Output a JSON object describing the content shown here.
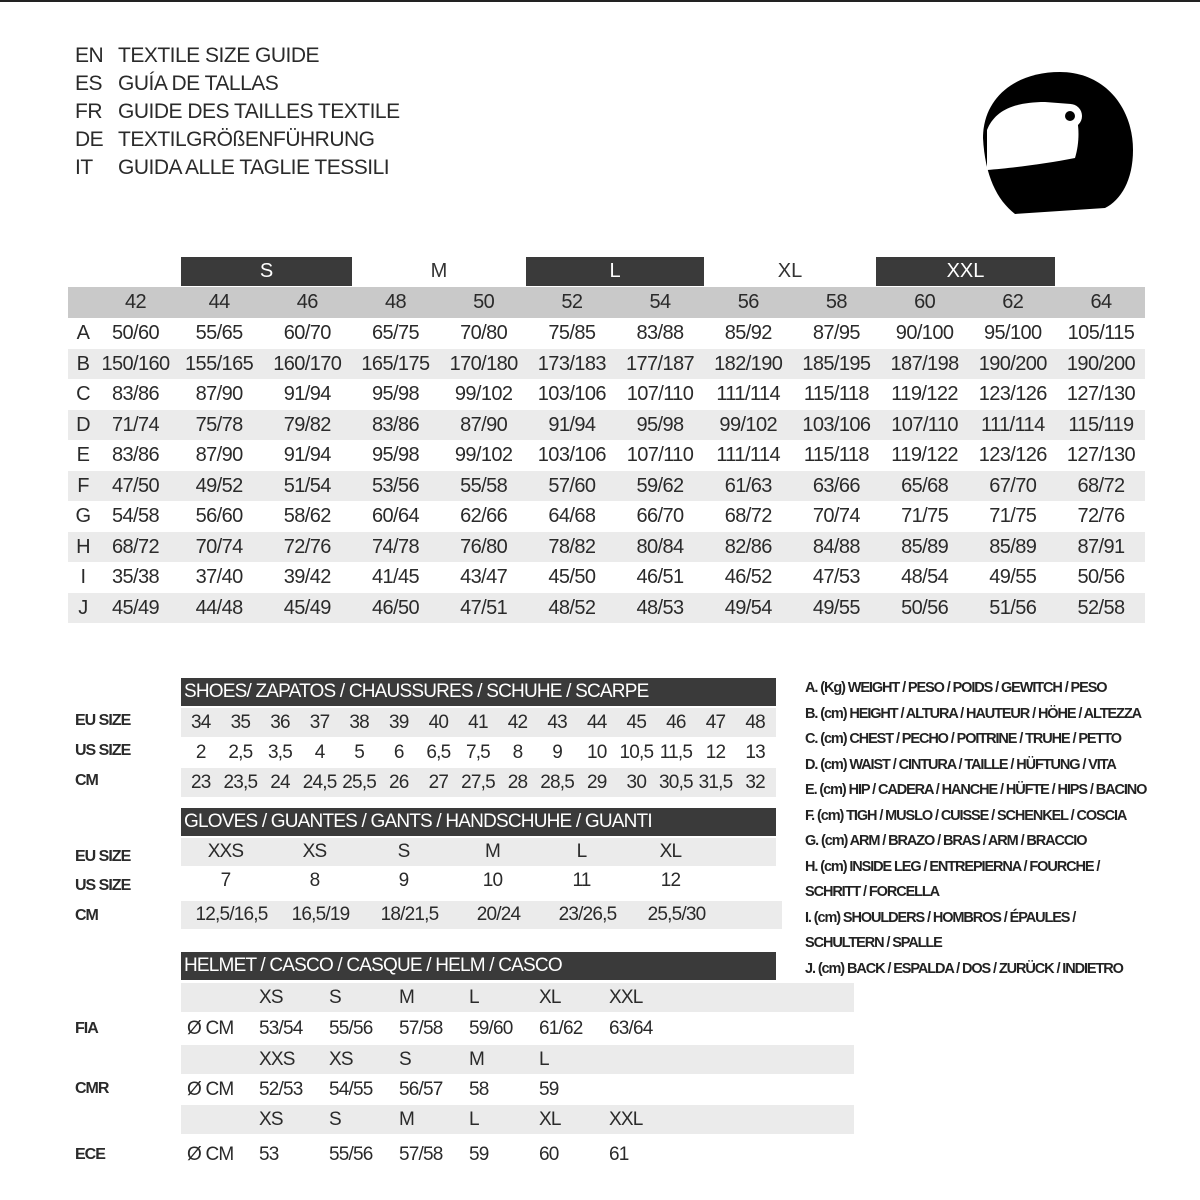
{
  "titles": [
    {
      "code": "EN",
      "text": "TEXTILE SIZE GUIDE"
    },
    {
      "code": "ES",
      "text": "GUÍA DE TALLAS"
    },
    {
      "code": "FR",
      "text": "GUIDE DES TAILLES TEXTILE"
    },
    {
      "code": "DE",
      "text": "TEXTILGRÖßENFÜHRUNG"
    },
    {
      "code": "IT",
      "text": "GUIDA ALLE TAGLIE TESSILI"
    }
  ],
  "helmet_icon": "helmet-icon",
  "colors": {
    "dark_bar": "#3a3a3a",
    "header_grey": "#c9c9c9",
    "row_alt": "#ebebeb"
  },
  "textile": {
    "bands": [
      "S",
      "M",
      "L",
      "XL",
      "XXL"
    ],
    "sizes": [
      "42",
      "44",
      "46",
      "48",
      "50",
      "52",
      "54",
      "56",
      "58",
      "60",
      "62",
      "64"
    ],
    "rows": [
      {
        "letter": "A",
        "values": [
          "50/60",
          "55/65",
          "60/70",
          "65/75",
          "70/80",
          "75/85",
          "83/88",
          "85/92",
          "87/95",
          "90/100",
          "95/100",
          "105/115"
        ]
      },
      {
        "letter": "B",
        "values": [
          "150/160",
          "155/165",
          "160/170",
          "165/175",
          "170/180",
          "173/183",
          "177/187",
          "182/190",
          "185/195",
          "187/198",
          "190/200",
          "190/200"
        ]
      },
      {
        "letter": "C",
        "values": [
          "83/86",
          "87/90",
          "91/94",
          "95/98",
          "99/102",
          "103/106",
          "107/110",
          "111/114",
          "115/118",
          "119/122",
          "123/126",
          "127/130"
        ]
      },
      {
        "letter": "D",
        "values": [
          "71/74",
          "75/78",
          "79/82",
          "83/86",
          "87/90",
          "91/94",
          "95/98",
          "99/102",
          "103/106",
          "107/110",
          "111/114",
          "115/119"
        ]
      },
      {
        "letter": "E",
        "values": [
          "83/86",
          "87/90",
          "91/94",
          "95/98",
          "99/102",
          "103/106",
          "107/110",
          "111/114",
          "115/118",
          "119/122",
          "123/126",
          "127/130"
        ]
      },
      {
        "letter": "F",
        "values": [
          "47/50",
          "49/52",
          "51/54",
          "53/56",
          "55/58",
          "57/60",
          "59/62",
          "61/63",
          "63/66",
          "65/68",
          "67/70",
          "68/72"
        ]
      },
      {
        "letter": "G",
        "values": [
          "54/58",
          "56/60",
          "58/62",
          "60/64",
          "62/66",
          "64/68",
          "66/70",
          "68/72",
          "70/74",
          "71/75",
          "71/75",
          "72/76"
        ]
      },
      {
        "letter": "H",
        "values": [
          "68/72",
          "70/74",
          "72/76",
          "74/78",
          "76/80",
          "78/82",
          "80/84",
          "82/86",
          "84/88",
          "85/89",
          "85/89",
          "87/91"
        ]
      },
      {
        "letter": "I",
        "values": [
          "35/38",
          "37/40",
          "39/42",
          "41/45",
          "43/47",
          "45/50",
          "46/51",
          "46/52",
          "47/53",
          "48/54",
          "49/55",
          "50/56"
        ]
      },
      {
        "letter": "J",
        "values": [
          "45/49",
          "44/48",
          "45/49",
          "46/50",
          "47/51",
          "48/52",
          "48/53",
          "49/54",
          "49/55",
          "50/56",
          "51/56",
          "52/58"
        ]
      }
    ]
  },
  "shoes": {
    "title": "SHOES/ ZAPATOS / CHAUSSURES / SCHUHE / SCARPE",
    "rows": [
      {
        "label": "EU SIZE",
        "values": [
          "34",
          "35",
          "36",
          "37",
          "38",
          "39",
          "40",
          "41",
          "42",
          "43",
          "44",
          "45",
          "46",
          "47",
          "48"
        ]
      },
      {
        "label": "US SIZE",
        "values": [
          "2",
          "2,5",
          "3,5",
          "4",
          "5",
          "6",
          "6,5",
          "7,5",
          "8",
          "9",
          "10",
          "10,5",
          "11,5",
          "12",
          "13"
        ]
      },
      {
        "label": "CM",
        "values": [
          "23",
          "23,5",
          "24",
          "24,5",
          "25,5",
          "26",
          "27",
          "27,5",
          "28",
          "28,5",
          "29",
          "30",
          "30,5",
          "31,5",
          "32"
        ]
      }
    ]
  },
  "gloves": {
    "title": "GLOVES / GUANTES / GANTS / HANDSCHUHE / GUANTI",
    "rows": [
      {
        "label": "EU SIZE",
        "values": [
          "XXS",
          "XS",
          "S",
          "M",
          "L",
          "XL"
        ]
      },
      {
        "label": "US SIZE",
        "values": [
          "7",
          "8",
          "9",
          "10",
          "11",
          "12"
        ]
      },
      {
        "label": "CM",
        "values": [
          "12,5/16,5",
          "16,5/19",
          "18/21,5",
          "20/24",
          "23/26,5",
          "25,5/30"
        ]
      }
    ]
  },
  "helmet": {
    "title": "HELMET / CASCO / CASQUE / HELM / CASCO",
    "unit": "Ø CM",
    "standards": [
      {
        "label": "FIA",
        "sizes": [
          "XS",
          "S",
          "M",
          "L",
          "XL",
          "XXL"
        ],
        "values": [
          "53/54",
          "55/56",
          "57/58",
          "59/60",
          "61/62",
          "63/64"
        ]
      },
      {
        "label": "CMR",
        "sizes": [
          "XXS",
          "XS",
          "S",
          "M",
          "L"
        ],
        "values": [
          "52/53",
          "54/55",
          "56/57",
          "58",
          "59"
        ]
      },
      {
        "label": "ECE",
        "sizes": [
          "XS",
          "S",
          "M",
          "L",
          "XL",
          "XXL"
        ],
        "values": [
          "53",
          "55/56",
          "57/58",
          "59",
          "60",
          "61"
        ]
      }
    ]
  },
  "legend": [
    "A. (Kg) WEIGHT / PESO / POIDS / GEWITCH / PESO",
    "B. (cm) HEIGHT / ALTURA / HAUTEUR / HÖHE / ALTEZZA",
    "C. (cm) CHEST / PECHO / POITRINE / TRUHE / PETTO",
    "D. (cm) WAIST / CINTURA / TAILLE / HÜFTUNG / VITA",
    "E. (cm) HIP / CADERA / HANCHE / HÜFTE / HIPS /  BACINO",
    "F.  (cm) TIGH / MUSLO / CUISSE / SCHENKEL / COSCIA",
    "G. (cm) ARM  / BRAZO / BRAS / ARM / BRACCIO",
    "H. (cm) INSIDE LEG / ENTREPIERNA / FOURCHE /",
    "SCHRITT / FORCELLA",
    "I.  (cm) SHOULDERS / HOMBROS / ÉPAULES /",
    "SCHULTERN / SPALLE",
    "J. (cm) BACK / ESPALDA / DOS / ZURÜCK / INDIETRO"
  ]
}
